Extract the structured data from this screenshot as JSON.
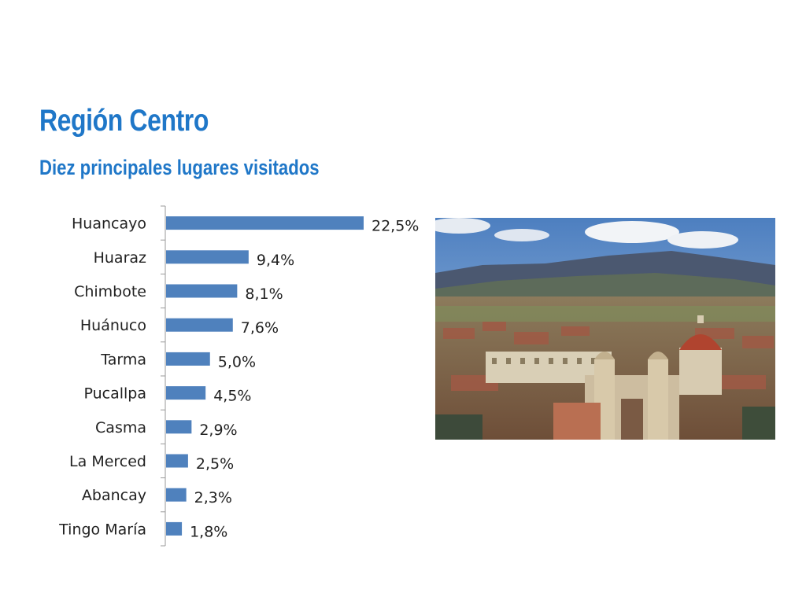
{
  "slide": {
    "title": "Región Centro",
    "subtitle": "Diez principales lugares visitados"
  },
  "colors": {
    "title": "#1f77c8",
    "bar": "#4f81bd"
  },
  "photo": {
    "description_icon": "city-photo"
  },
  "chart_data": {
    "type": "bar",
    "orientation": "horizontal",
    "title": "",
    "xlabel": "",
    "ylabel": "",
    "categories": [
      "Huancayo",
      "Huaraz",
      "Chimbote",
      "Huánuco",
      "Tarma",
      "Pucallpa",
      "Casma",
      "La Merced",
      "Abancay",
      "Tingo María"
    ],
    "values": [
      22.5,
      9.4,
      8.1,
      7.6,
      5.0,
      4.5,
      2.9,
      2.5,
      2.3,
      1.8
    ],
    "data_labels": [
      "22,5%",
      "9,4%",
      "8,1%",
      "7,6%",
      "5,0%",
      "4,5%",
      "2,9%",
      "2,5%",
      "2,3%",
      "1,8%"
    ],
    "unit": "%",
    "xlim": [
      0,
      22.5
    ],
    "grid": false,
    "legend": "none"
  }
}
